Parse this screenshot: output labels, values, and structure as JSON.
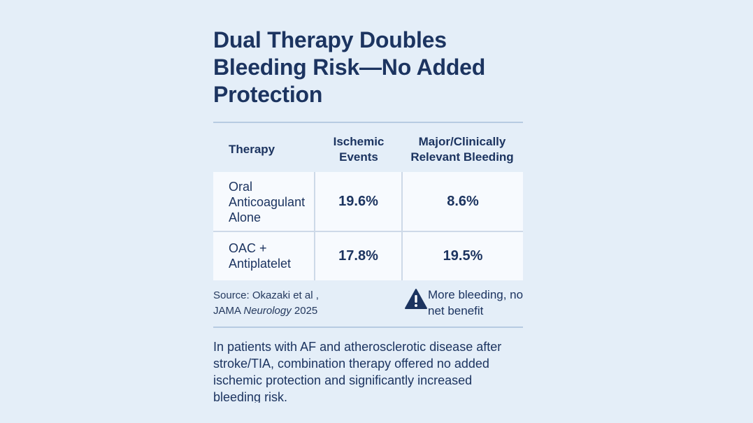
{
  "title": "Dual Therapy Doubles Bleeding Risk—No Added Protection",
  "table": {
    "headers": [
      "Therapy",
      "Ischemic Events",
      "Major/Clinically Relevant Bleeding"
    ],
    "rows": [
      {
        "therapy": "Oral Anticoagulant Alone",
        "ischemic": "19.6%",
        "bleeding": "8.6%"
      },
      {
        "therapy": "OAC + Antiplatelet",
        "ischemic": "17.8%",
        "bleeding": "19.5%"
      }
    ]
  },
  "source": {
    "line1": "Source: Okazaki et al ,",
    "journal_prefix": "JAMA ",
    "journal_italic": "Neurology",
    "year": " 2025"
  },
  "warning": {
    "icon": "warning-triangle-icon",
    "text": "More bleeding, no net benefit"
  },
  "summary": "In patients with AF and atherosclerotic disease after stroke/TIA, combination therapy offered no added ischemic protection and significantly increased bleeding risk.",
  "colors": {
    "background": "#e4eef8",
    "text": "#1c3460",
    "table_body": "#f7fafe",
    "rule": "#b7cbe2"
  }
}
